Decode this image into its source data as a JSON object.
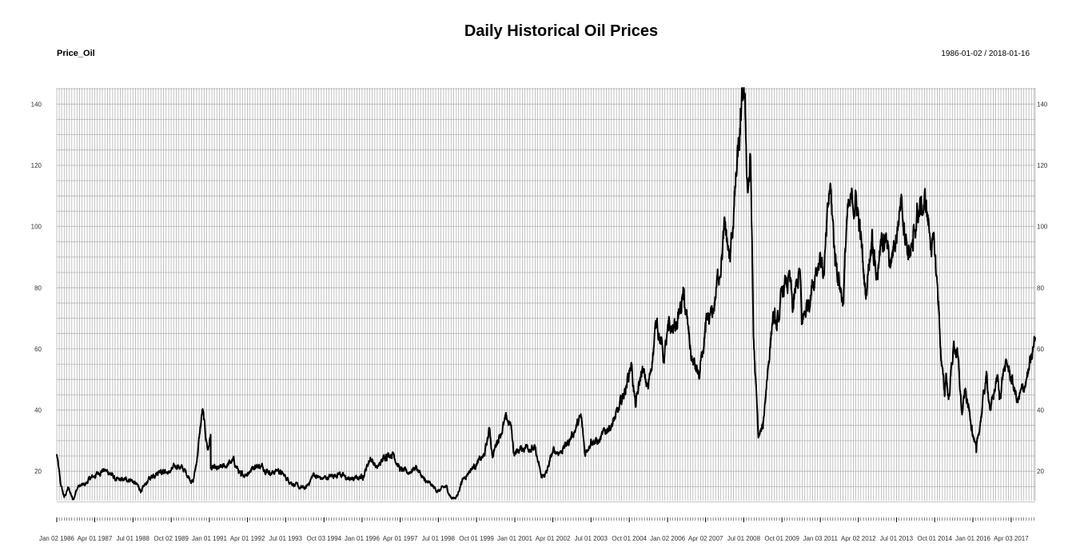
{
  "header": {
    "title": "Daily Historical Oil Prices",
    "series_label": "Price_Oil",
    "date_range": "1986-01-02 / 2018-01-16"
  },
  "chart_data": {
    "type": "line",
    "title": "Daily Historical Oil Prices",
    "series_name": "Price_Oil",
    "xlabel": "",
    "ylabel": "",
    "date_range": [
      "1986-01-02",
      "2018-01-16"
    ],
    "xlim": [
      "1986-01-02",
      "2018-01-16"
    ],
    "ylim": [
      10.4,
      145.3
    ],
    "grid": true,
    "y_ticks": [
      20,
      40,
      60,
      80,
      100,
      120,
      140
    ],
    "y_axis_sides": [
      "left",
      "right"
    ],
    "x_tick_labels": [
      {
        "date": "1986-01-02",
        "label": "Jan 02 1986"
      },
      {
        "date": "1987-04-01",
        "label": "Apr 01 1987"
      },
      {
        "date": "1988-07-01",
        "label": "Jul 01 1988"
      },
      {
        "date": "1989-10-02",
        "label": "Oct 02 1989"
      },
      {
        "date": "1991-01-01",
        "label": "Jan 01 1991"
      },
      {
        "date": "1992-04-01",
        "label": "Apr 01 1992"
      },
      {
        "date": "1993-07-01",
        "label": "Jul 01 1993"
      },
      {
        "date": "1994-10-03",
        "label": "Oct 03 1994"
      },
      {
        "date": "1996-01-01",
        "label": "Jan 01 1996"
      },
      {
        "date": "1997-04-01",
        "label": "Apr 01 1997"
      },
      {
        "date": "1998-07-01",
        "label": "Jul 01 1998"
      },
      {
        "date": "1999-10-01",
        "label": "Oct 01 1999"
      },
      {
        "date": "2001-01-01",
        "label": "Jan 01 2001"
      },
      {
        "date": "2002-04-01",
        "label": "Apr 01 2002"
      },
      {
        "date": "2003-07-01",
        "label": "Jul 01 2003"
      },
      {
        "date": "2004-10-01",
        "label": "Oct 01 2004"
      },
      {
        "date": "2006-01-02",
        "label": "Jan 02 2006"
      },
      {
        "date": "2007-04-02",
        "label": "Apr 02 2007"
      },
      {
        "date": "2008-07-01",
        "label": "Jul 01 2008"
      },
      {
        "date": "2009-10-01",
        "label": "Oct 01 2009"
      },
      {
        "date": "2011-01-03",
        "label": "Jan 03 2011"
      },
      {
        "date": "2012-04-02",
        "label": "Apr 02 2012"
      },
      {
        "date": "2013-07-01",
        "label": "Jul 01 2013"
      },
      {
        "date": "2014-10-01",
        "label": "Oct 01 2014"
      },
      {
        "date": "2016-01-01",
        "label": "Jan 01 2016"
      },
      {
        "date": "2017-04-03",
        "label": "Apr 03 2017"
      }
    ],
    "series": [
      {
        "name": "Price_Oil",
        "color": "#000000",
        "points": [
          [
            "1986-01-02",
            25.6
          ],
          [
            "1986-02-15",
            16.0
          ],
          [
            "1986-04-01",
            11.5
          ],
          [
            "1986-05-20",
            14.5
          ],
          [
            "1986-07-15",
            11.0
          ],
          [
            "1986-09-15",
            15.0
          ],
          [
            "1986-12-01",
            15.5
          ],
          [
            "1987-02-01",
            17.5
          ],
          [
            "1987-04-01",
            18.5
          ],
          [
            "1987-07-01",
            20.5
          ],
          [
            "1987-10-01",
            19.5
          ],
          [
            "1987-12-15",
            17.0
          ],
          [
            "1988-03-01",
            17.0
          ],
          [
            "1988-06-01",
            17.5
          ],
          [
            "1988-09-01",
            15.0
          ],
          [
            "1988-10-15",
            13.5
          ],
          [
            "1988-12-15",
            16.5
          ],
          [
            "1989-03-01",
            19.0
          ],
          [
            "1989-06-01",
            20.5
          ],
          [
            "1989-09-01",
            19.5
          ],
          [
            "1989-12-15",
            22.0
          ],
          [
            "1990-03-01",
            20.5
          ],
          [
            "1990-06-20",
            16.5
          ],
          [
            "1990-08-01",
            23.0
          ],
          [
            "1990-10-10",
            40.0
          ],
          [
            "1990-11-15",
            32.0
          ],
          [
            "1990-12-15",
            27.0
          ],
          [
            "1991-01-16",
            32.0
          ],
          [
            "1991-01-18",
            21.0
          ],
          [
            "1991-04-01",
            20.5
          ],
          [
            "1991-07-01",
            21.5
          ],
          [
            "1991-10-15",
            23.5
          ],
          [
            "1992-01-15",
            18.5
          ],
          [
            "1992-04-01",
            19.5
          ],
          [
            "1992-07-01",
            22.0
          ],
          [
            "1992-10-01",
            21.5
          ],
          [
            "1993-01-15",
            19.5
          ],
          [
            "1993-04-01",
            20.5
          ],
          [
            "1993-07-01",
            18.0
          ],
          [
            "1993-12-15",
            14.5
          ],
          [
            "1994-03-01",
            14.5
          ],
          [
            "1994-06-01",
            19.0
          ],
          [
            "1994-09-01",
            17.5
          ],
          [
            "1995-01-15",
            18.5
          ],
          [
            "1995-04-01",
            19.5
          ],
          [
            "1995-07-01",
            17.5
          ],
          [
            "1995-10-01",
            17.5
          ],
          [
            "1996-01-15",
            18.5
          ],
          [
            "1996-04-10",
            24.5
          ],
          [
            "1996-07-01",
            21.0
          ],
          [
            "1996-10-15",
            25.5
          ],
          [
            "1997-01-10",
            26.0
          ],
          [
            "1997-04-01",
            20.5
          ],
          [
            "1997-07-01",
            19.5
          ],
          [
            "1997-10-10",
            21.5
          ],
          [
            "1998-01-15",
            17.0
          ],
          [
            "1998-04-01",
            15.5
          ],
          [
            "1998-07-01",
            13.5
          ],
          [
            "1998-10-01",
            15.0
          ],
          [
            "1998-12-10",
            11.0
          ],
          [
            "1999-02-15",
            12.0
          ],
          [
            "1999-04-01",
            16.5
          ],
          [
            "1999-07-01",
            20.0
          ],
          [
            "1999-10-01",
            22.5
          ],
          [
            "2000-01-01",
            25.0
          ],
          [
            "2000-03-07",
            34.0
          ],
          [
            "2000-04-10",
            24.5
          ],
          [
            "2000-06-01",
            30.0
          ],
          [
            "2000-09-20",
            37.0
          ],
          [
            "2000-11-15",
            35.0
          ],
          [
            "2000-12-20",
            26.0
          ],
          [
            "2001-03-01",
            27.0
          ],
          [
            "2001-06-01",
            28.5
          ],
          [
            "2001-09-01",
            27.0
          ],
          [
            "2001-11-15",
            18.0
          ],
          [
            "2002-01-15",
            19.5
          ],
          [
            "2002-04-01",
            26.5
          ],
          [
            "2002-07-01",
            26.5
          ],
          [
            "2002-10-01",
            29.5
          ],
          [
            "2003-03-05",
            37.5
          ],
          [
            "2003-04-20",
            25.5
          ],
          [
            "2003-07-01",
            30.5
          ],
          [
            "2003-10-01",
            29.5
          ],
          [
            "2004-01-15",
            34.0
          ],
          [
            "2004-04-01",
            36.5
          ],
          [
            "2004-06-01",
            40.0
          ],
          [
            "2004-08-20",
            47.5
          ],
          [
            "2004-10-25",
            55.5
          ],
          [
            "2004-12-15",
            41.0
          ],
          [
            "2005-03-01",
            53.0
          ],
          [
            "2005-05-15",
            47.0
          ],
          [
            "2005-08-30",
            70.0
          ],
          [
            "2005-11-15",
            57.0
          ],
          [
            "2006-01-15",
            66.0
          ],
          [
            "2006-04-01",
            67.0
          ],
          [
            "2006-07-14",
            77.0
          ],
          [
            "2006-10-15",
            57.0
          ],
          [
            "2007-01-18",
            50.5
          ],
          [
            "2007-04-02",
            65.5
          ],
          [
            "2007-07-01",
            72.0
          ],
          [
            "2007-11-20",
            99.0
          ],
          [
            "2008-01-20",
            88.5
          ],
          [
            "2008-03-15",
            110.0
          ],
          [
            "2008-05-20",
            130.0
          ],
          [
            "2008-07-03",
            145.3
          ],
          [
            "2008-08-15",
            113.0
          ],
          [
            "2008-09-22",
            121.0
          ],
          [
            "2008-10-25",
            64.0
          ],
          [
            "2008-12-22",
            31.0
          ],
          [
            "2009-02-15",
            34.0
          ],
          [
            "2009-04-01",
            49.5
          ],
          [
            "2009-06-15",
            71.0
          ],
          [
            "2009-08-01",
            66.0
          ],
          [
            "2009-10-20",
            80.0
          ],
          [
            "2010-01-05",
            82.0
          ],
          [
            "2010-02-05",
            72.0
          ],
          [
            "2010-05-03",
            86.0
          ],
          [
            "2010-05-25",
            68.0
          ],
          [
            "2010-08-15",
            76.0
          ],
          [
            "2010-11-10",
            86.5
          ],
          [
            "2011-01-03",
            91.5
          ],
          [
            "2011-02-15",
            84.0
          ],
          [
            "2011-04-29",
            113.5
          ],
          [
            "2011-06-25",
            91.0
          ],
          [
            "2011-10-04",
            75.5
          ],
          [
            "2011-11-15",
            102.0
          ],
          [
            "2012-02-24",
            109.5
          ],
          [
            "2012-04-02",
            104.0
          ],
          [
            "2012-06-28",
            77.5
          ],
          [
            "2012-09-14",
            99.0
          ],
          [
            "2012-11-07",
            84.5
          ],
          [
            "2013-01-30",
            97.5
          ],
          [
            "2013-04-18",
            86.5
          ],
          [
            "2013-07-01",
            97.0
          ],
          [
            "2013-08-28",
            110.5
          ],
          [
            "2013-11-15",
            93.0
          ],
          [
            "2014-01-15",
            92.0
          ],
          [
            "2014-03-01",
            104.0
          ],
          [
            "2014-06-20",
            107.5
          ],
          [
            "2014-08-01",
            98.0
          ],
          [
            "2014-10-01",
            91.0
          ],
          [
            "2014-11-15",
            75.5
          ],
          [
            "2014-12-20",
            56.0
          ],
          [
            "2015-01-28",
            44.5
          ],
          [
            "2015-02-15",
            52.0
          ],
          [
            "2015-03-17",
            43.5
          ],
          [
            "2015-05-15",
            61.0
          ],
          [
            "2015-06-25",
            59.5
          ],
          [
            "2015-08-25",
            38.5
          ],
          [
            "2015-10-01",
            46.0
          ],
          [
            "2015-12-20",
            35.0
          ],
          [
            "2016-02-11",
            26.2
          ],
          [
            "2016-04-01",
            36.5
          ],
          [
            "2016-06-08",
            51.0
          ],
          [
            "2016-08-03",
            40.0
          ],
          [
            "2016-10-20",
            51.5
          ],
          [
            "2016-11-14",
            43.5
          ],
          [
            "2017-01-03",
            53.5
          ],
          [
            "2017-02-20",
            54.0
          ],
          [
            "2017-04-03",
            50.5
          ],
          [
            "2017-06-21",
            42.5
          ],
          [
            "2017-09-01",
            47.5
          ],
          [
            "2017-10-25",
            52.0
          ],
          [
            "2017-12-10",
            57.0
          ],
          [
            "2018-01-16",
            63.8
          ]
        ]
      }
    ]
  }
}
